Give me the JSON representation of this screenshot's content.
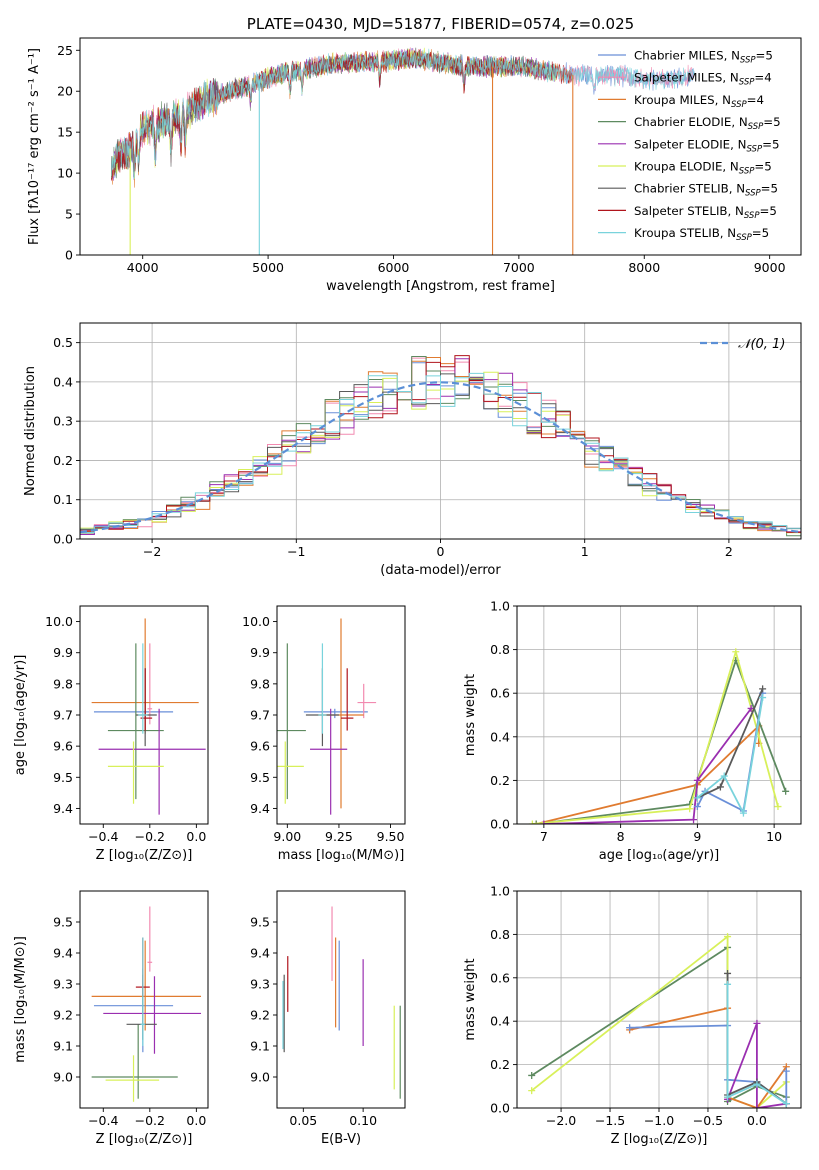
{
  "figure": {
    "colors": {
      "chabrier_miles": "#6a8fd8",
      "salpeter_miles": "#f28ab0",
      "kroupa_miles": "#e07b30",
      "chabrier_elodie": "#5e8a60",
      "salpeter_elodie": "#9a2fb0",
      "kroupa_elodie": "#d8f05a",
      "chabrier_stelib": "#5a5a5a",
      "salpeter_stelib": "#b0141c",
      "kroupa_stelib": "#79d3dc",
      "gauss": "#5b8fd6"
    }
  },
  "chart_data": [
    {
      "id": "spectrum",
      "type": "line",
      "title": "PLATE=0430, MJD=51877, FIBERID=0574, z=0.025",
      "xlabel": "wavelength [Angstrom, rest frame]",
      "ylabel": "Flux [fλ10⁻¹⁷ erg cm⁻² s⁻¹ A⁻¹]",
      "xlim": [
        3500,
        9250
      ],
      "ylim": [
        0,
        26.5
      ],
      "xticks": [
        4000,
        5000,
        6000,
        7000,
        8000,
        9000
      ],
      "yticks": [
        0,
        5,
        10,
        15,
        20,
        25
      ],
      "legend_position": "upper right",
      "continuum": {
        "x": [
          3750,
          3800,
          3900,
          4000,
          4100,
          4200,
          4300,
          4400,
          4500,
          4600,
          4800,
          5000,
          5200,
          5400,
          5600,
          5800,
          6000,
          6200,
          6400,
          6600,
          6800,
          7000,
          7200,
          7400,
          7600,
          7800,
          8000,
          8200,
          8400
        ],
        "y": [
          10,
          12,
          13,
          15.5,
          16,
          16.5,
          17,
          18,
          19,
          19.5,
          20.5,
          21.5,
          22.5,
          23,
          23.5,
          23.5,
          23.8,
          24,
          23.5,
          23,
          23,
          23,
          22.5,
          22,
          22,
          22,
          21.5,
          21.5,
          22
        ]
      },
      "series": [
        {
          "name": "Chabrier MILES, N_SSP=5",
          "name_main": "Chabrier MILES, N",
          "name_sub": "SSP",
          "name_tail": "=5",
          "color_key": "chabrier_miles"
        },
        {
          "name": "Salpeter MILES, N_SSP=4",
          "name_main": "Salpeter MILES, N",
          "name_sub": "SSP",
          "name_tail": "=4",
          "color_key": "salpeter_miles"
        },
        {
          "name": "Kroupa MILES, N_SSP=4",
          "name_main": "Kroupa MILES, N",
          "name_sub": "SSP",
          "name_tail": "=4",
          "color_key": "kroupa_miles"
        },
        {
          "name": "Chabrier ELODIE, N_SSP=5",
          "name_main": "Chabrier ELODIE, N",
          "name_sub": "SSP",
          "name_tail": "=5",
          "color_key": "chabrier_elodie"
        },
        {
          "name": "Salpeter ELODIE, N_SSP=5",
          "name_main": "Salpeter ELODIE, N",
          "name_sub": "SSP",
          "name_tail": "=5",
          "color_key": "salpeter_elodie"
        },
        {
          "name": "Kroupa ELODIE, N_SSP=5",
          "name_main": "Kroupa ELODIE, N",
          "name_sub": "SSP",
          "name_tail": "=5",
          "color_key": "kroupa_elodie"
        },
        {
          "name": "Chabrier STELIB, N_SSP=5",
          "name_main": "Chabrier STELIB, N",
          "name_sub": "SSP",
          "name_tail": "=5",
          "color_key": "chabrier_stelib"
        },
        {
          "name": "Salpeter STELIB, N_SSP=5",
          "name_main": "Salpeter STELIB, N",
          "name_sub": "SSP",
          "name_tail": "=5",
          "color_key": "salpeter_stelib"
        },
        {
          "name": "Kroupa STELIB, N_SSP=5",
          "name_main": "Kroupa STELIB, N",
          "name_sub": "SSP",
          "name_tail": "=5",
          "color_key": "kroupa_stelib"
        }
      ],
      "drops": [
        {
          "x": 3900,
          "color_key": "kroupa_elodie"
        },
        {
          "x": 4930,
          "color_key": "kroupa_stelib"
        },
        {
          "x": 6790,
          "color_key": "kroupa_miles"
        },
        {
          "x": 7430,
          "color_key": "kroupa_miles"
        }
      ]
    },
    {
      "id": "residuals",
      "type": "histogram",
      "xlabel": "(data-model)/error",
      "ylabel": "Normed distribution",
      "xlim": [
        -2.5,
        2.5
      ],
      "ylim": [
        0,
        0.55
      ],
      "xticks": [
        -2,
        -1,
        0,
        1,
        2
      ],
      "yticks": [
        0,
        0.1,
        0.2,
        0.3,
        0.4,
        0.5
      ],
      "grid": true,
      "bin_width": 0.1,
      "legend": "𝒩(0, 1)",
      "gauss": {
        "mu": 0,
        "sigma": 1
      }
    },
    {
      "id": "z_age",
      "type": "errorbar",
      "xlabel": "Z [log₁₀(Z/Z⊙)]",
      "ylabel": "age  [log₁₀(age/yr)]",
      "xlim": [
        -0.5,
        0.05
      ],
      "ylim": [
        9.35,
        10.05
      ],
      "xticks": [
        -0.4,
        -0.2,
        0.0
      ],
      "yticks": [
        9.4,
        9.5,
        9.6,
        9.7,
        9.8,
        9.9,
        10.0
      ],
      "points": [
        {
          "x": -0.22,
          "xerr": [
            0.22,
            0.12
          ],
          "y": 9.71,
          "yerr": [
            0.02,
            0.01
          ],
          "color_key": "chabrier_miles"
        },
        {
          "x": -0.2,
          "xerr": [
            0.01,
            0.01
          ],
          "y": 9.72,
          "yerr": [
            0.05,
            0.21
          ],
          "color_key": "salpeter_miles"
        },
        {
          "x": -0.22,
          "xerr": [
            0.23,
            0.23
          ],
          "y": 9.74,
          "yerr": [
            0.1,
            0.27
          ],
          "color_key": "kroupa_miles"
        },
        {
          "x": -0.26,
          "xerr": [
            0.12,
            0.12
          ],
          "y": 9.65,
          "yerr": [
            0.22,
            0.28
          ],
          "color_key": "chabrier_elodie"
        },
        {
          "x": -0.16,
          "xerr": [
            0.26,
            0.2
          ],
          "y": 9.59,
          "yerr": [
            0.21,
            0.13
          ],
          "color_key": "salpeter_elodie"
        },
        {
          "x": -0.27,
          "xerr": [
            0.11,
            0.13
          ],
          "y": 9.535,
          "yerr": [
            0.12,
            0.08
          ],
          "color_key": "kroupa_elodie"
        },
        {
          "x": -0.22,
          "xerr": [
            0.04,
            0.05
          ],
          "y": 9.7,
          "yerr": [
            0.1,
            0.15
          ],
          "color_key": "chabrier_stelib"
        },
        {
          "x": -0.22,
          "xerr": [
            0.02,
            0.03
          ],
          "y": 9.69,
          "yerr": [
            0.04,
            0.16
          ],
          "color_key": "salpeter_stelib"
        },
        {
          "x": -0.23,
          "xerr": [
            0.02,
            0.02
          ],
          "y": 9.7,
          "yerr": [
            0.06,
            0.23
          ],
          "color_key": "kroupa_stelib"
        }
      ]
    },
    {
      "id": "mass_age",
      "type": "errorbar",
      "xlabel": "mass [log₁₀(M/M⊙)]",
      "ylabel": "",
      "xlim": [
        8.95,
        9.57
      ],
      "ylim": [
        9.35,
        10.05
      ],
      "xticks": [
        9.0,
        9.25,
        9.5
      ],
      "yticks": [
        9.4,
        9.5,
        9.6,
        9.7,
        9.8,
        9.9,
        10.0
      ],
      "points": [
        {
          "x": 9.23,
          "xerr": [
            0.15,
            0.16
          ],
          "y": 9.71,
          "yerr": [
            0.02,
            0.01
          ],
          "color_key": "chabrier_miles"
        },
        {
          "x": 9.37,
          "xerr": [
            0.03,
            0.06
          ],
          "y": 9.74,
          "yerr": [
            0.05,
            0.06
          ],
          "color_key": "salpeter_miles"
        },
        {
          "x": 9.26,
          "xerr": [
            0.11,
            0.11
          ],
          "y": 9.7,
          "yerr": [
            0.3,
            0.31
          ],
          "color_key": "kroupa_miles"
        },
        {
          "x": 9.0,
          "xerr": [
            0.08,
            0.09
          ],
          "y": 9.65,
          "yerr": [
            0.22,
            0.28
          ],
          "color_key": "chabrier_elodie"
        },
        {
          "x": 9.21,
          "xerr": [
            0.1,
            0.08
          ],
          "y": 9.59,
          "yerr": [
            0.21,
            0.13
          ],
          "color_key": "salpeter_elodie"
        },
        {
          "x": 8.99,
          "xerr": [
            0.07,
            0.09
          ],
          "y": 9.535,
          "yerr": [
            0.12,
            0.08
          ],
          "color_key": "kroupa_elodie"
        },
        {
          "x": 9.17,
          "xerr": [
            0.08,
            0.08
          ],
          "y": 9.7,
          "yerr": [
            0.1,
            0.15
          ],
          "color_key": "chabrier_stelib"
        },
        {
          "x": 9.29,
          "xerr": [
            0.03,
            0.03
          ],
          "y": 9.69,
          "yerr": [
            0.04,
            0.16
          ],
          "color_key": "salpeter_stelib"
        },
        {
          "x": 9.17,
          "xerr": [
            0.02,
            0.02
          ],
          "y": 9.7,
          "yerr": [
            0.06,
            0.23
          ],
          "color_key": "kroupa_stelib"
        }
      ]
    },
    {
      "id": "weight_age",
      "type": "line",
      "xlabel": "age  [log₁₀(age/yr)]",
      "ylabel": "mass weight",
      "xlim": [
        6.65,
        10.35
      ],
      "ylim": [
        0,
        1.0
      ],
      "xticks": [
        7,
        8,
        9,
        10
      ],
      "yticks": [
        0.0,
        0.2,
        0.4,
        0.6,
        0.8,
        1.0
      ],
      "grid": true,
      "series": [
        {
          "color_key": "kroupa_miles",
          "x": [
            6.9,
            9.0,
            9.8,
            9.8
          ],
          "y": [
            0.0,
            0.18,
            0.45,
            0.37
          ]
        },
        {
          "color_key": "chabrier_elodie",
          "x": [
            6.9,
            8.9,
            9.5,
            10.15
          ],
          "y": [
            0.0,
            0.09,
            0.75,
            0.15
          ]
        },
        {
          "color_key": "kroupa_elodie",
          "x": [
            6.85,
            8.9,
            9.5,
            10.05
          ],
          "y": [
            0.0,
            0.07,
            0.79,
            0.08
          ]
        },
        {
          "color_key": "salpeter_elodie",
          "x": [
            7.0,
            8.95,
            9.0,
            9.7
          ],
          "y": [
            0.0,
            0.02,
            0.2,
            0.53
          ]
        },
        {
          "color_key": "chabrier_miles",
          "x": [
            9.0,
            9.1,
            9.6,
            9.85
          ],
          "y": [
            0.08,
            0.15,
            0.06,
            0.6
          ]
        },
        {
          "color_key": "chabrier_stelib",
          "x": [
            9.0,
            9.3,
            9.85
          ],
          "y": [
            0.12,
            0.17,
            0.62
          ]
        },
        {
          "color_key": "kroupa_stelib",
          "x": [
            9.0,
            9.35,
            9.6,
            9.85
          ],
          "y": [
            0.12,
            0.22,
            0.05,
            0.58
          ]
        }
      ]
    },
    {
      "id": "z_mass",
      "type": "errorbar",
      "xlabel": "Z [log₁₀(Z/Z⊙)]",
      "ylabel": "mass [log₁₀(M/M⊙)]",
      "xlim": [
        -0.5,
        0.05
      ],
      "ylim": [
        8.9,
        9.6
      ],
      "xticks": [
        -0.4,
        -0.2,
        0.0
      ],
      "yticks": [
        9.0,
        9.1,
        9.2,
        9.3,
        9.4,
        9.5
      ],
      "points": [
        {
          "x": -0.23,
          "xerr": [
            0.21,
            0.13
          ],
          "y": 9.23,
          "yerr": [
            0.15,
            0.12
          ],
          "color_key": "chabrier_miles"
        },
        {
          "x": -0.2,
          "xerr": [
            0.01,
            0.01
          ],
          "y": 9.37,
          "yerr": [
            0.03,
            0.18
          ],
          "color_key": "salpeter_miles"
        },
        {
          "x": -0.22,
          "xerr": [
            0.23,
            0.24
          ],
          "y": 9.26,
          "yerr": [
            0.11,
            0.18
          ],
          "color_key": "kroupa_miles"
        },
        {
          "x": -0.25,
          "xerr": [
            0.2,
            0.17
          ],
          "y": 9.0,
          "yerr": [
            0.07,
            0.17
          ],
          "color_key": "chabrier_elodie"
        },
        {
          "x": -0.18,
          "xerr": [
            0.22,
            0.2
          ],
          "y": 9.205,
          "yerr": [
            0.13,
            0.12
          ],
          "color_key": "salpeter_elodie"
        },
        {
          "x": -0.27,
          "xerr": [
            0.12,
            0.11
          ],
          "y": 8.99,
          "yerr": [
            0.07,
            0.08
          ],
          "color_key": "kroupa_elodie"
        },
        {
          "x": -0.23,
          "xerr": [
            0.07,
            0.06
          ],
          "y": 9.17,
          "yerr": [
            0.05,
            0.16
          ],
          "color_key": "chabrier_stelib"
        },
        {
          "x": -0.23,
          "xerr": [
            0.03,
            0.03
          ],
          "y": 9.29,
          "yerr": [
            0.03,
            0.16
          ],
          "color_key": "salpeter_stelib"
        },
        {
          "x": -0.23,
          "xerr": [
            0.01,
            0.01
          ],
          "y": 9.17,
          "yerr": [
            0.07,
            0.28
          ],
          "color_key": "kroupa_stelib"
        }
      ]
    },
    {
      "id": "ebv_mass",
      "type": "errorbar",
      "xlabel": "E(B-V)",
      "ylabel": "",
      "xlim": [
        0.028,
        0.135
      ],
      "ylim": [
        8.9,
        9.6
      ],
      "xticks": [
        0.05,
        0.1
      ],
      "yticks": [
        9.0,
        9.1,
        9.2,
        9.3,
        9.4,
        9.5
      ],
      "points": [
        {
          "x": 0.08,
          "y": 9.3,
          "yerr": [
            0.15,
            0.14
          ],
          "color_key": "chabrier_miles"
        },
        {
          "x": 0.074,
          "y": 9.43,
          "yerr": [
            0.12,
            0.12
          ],
          "color_key": "salpeter_miles"
        },
        {
          "x": 0.077,
          "y": 9.31,
          "yerr": [
            0.15,
            0.14
          ],
          "color_key": "kroupa_miles"
        },
        {
          "x": 0.131,
          "y": 9.08,
          "yerr": [
            0.15,
            0.15
          ],
          "color_key": "chabrier_elodie"
        },
        {
          "x": 0.1,
          "y": 9.24,
          "yerr": [
            0.14,
            0.14
          ],
          "color_key": "salpeter_elodie"
        },
        {
          "x": 0.126,
          "y": 9.1,
          "yerr": [
            0.14,
            0.13
          ],
          "color_key": "kroupa_elodie"
        },
        {
          "x": 0.034,
          "y": 9.2,
          "yerr": [
            0.12,
            0.13
          ],
          "color_key": "chabrier_stelib"
        },
        {
          "x": 0.037,
          "y": 9.3,
          "yerr": [
            0.09,
            0.09
          ],
          "color_key": "salpeter_stelib"
        },
        {
          "x": 0.033,
          "y": 9.2,
          "yerr": [
            0.11,
            0.11
          ],
          "color_key": "kroupa_stelib"
        }
      ]
    },
    {
      "id": "weight_z",
      "type": "line",
      "xlabel": "Z [log₁₀(Z/Z⊙)]",
      "ylabel": "mass weight",
      "xlim": [
        -2.45,
        0.45
      ],
      "ylim": [
        0,
        1.0
      ],
      "xticks": [
        -2.0,
        -1.5,
        -1.0,
        -0.5,
        0.0
      ],
      "yticks": [
        0.0,
        0.2,
        0.4,
        0.6,
        0.8,
        1.0
      ],
      "grid": true,
      "series": [
        {
          "color_key": "chabrier_elodie",
          "x": [
            -2.3,
            -0.3,
            -0.3,
            0.0,
            0.3
          ],
          "y": [
            0.15,
            0.74,
            0.03,
            0.1,
            0.05
          ]
        },
        {
          "color_key": "kroupa_elodie",
          "x": [
            -2.3,
            -0.3,
            -0.3,
            0.0,
            0.3
          ],
          "y": [
            0.08,
            0.79,
            0.05,
            0.0,
            0.12
          ]
        },
        {
          "color_key": "kroupa_miles",
          "x": [
            -1.3,
            -0.3,
            -0.3,
            0.0,
            0.3
          ],
          "y": [
            0.36,
            0.46,
            0.05,
            0.0,
            0.19
          ]
        },
        {
          "color_key": "chabrier_miles",
          "x": [
            -1.3,
            -0.3,
            -0.3,
            0.0,
            0.3,
            0.3
          ],
          "y": [
            0.37,
            0.38,
            0.13,
            0.12,
            0.02,
            0.17
          ]
        },
        {
          "color_key": "salpeter_elodie",
          "x": [
            -0.3,
            0.0,
            0.0,
            0.3
          ],
          "y": [
            0.04,
            0.39,
            0.0,
            0.02
          ]
        },
        {
          "color_key": "chabrier_stelib",
          "x": [
            -0.3,
            -0.3,
            0.0,
            0.3
          ],
          "y": [
            0.62,
            0.06,
            0.12,
            0.02
          ]
        },
        {
          "color_key": "kroupa_stelib",
          "x": [
            -0.3,
            -0.3,
            0.0,
            0.3
          ],
          "y": [
            0.57,
            0.05,
            0.11,
            0.02
          ]
        }
      ]
    }
  ]
}
